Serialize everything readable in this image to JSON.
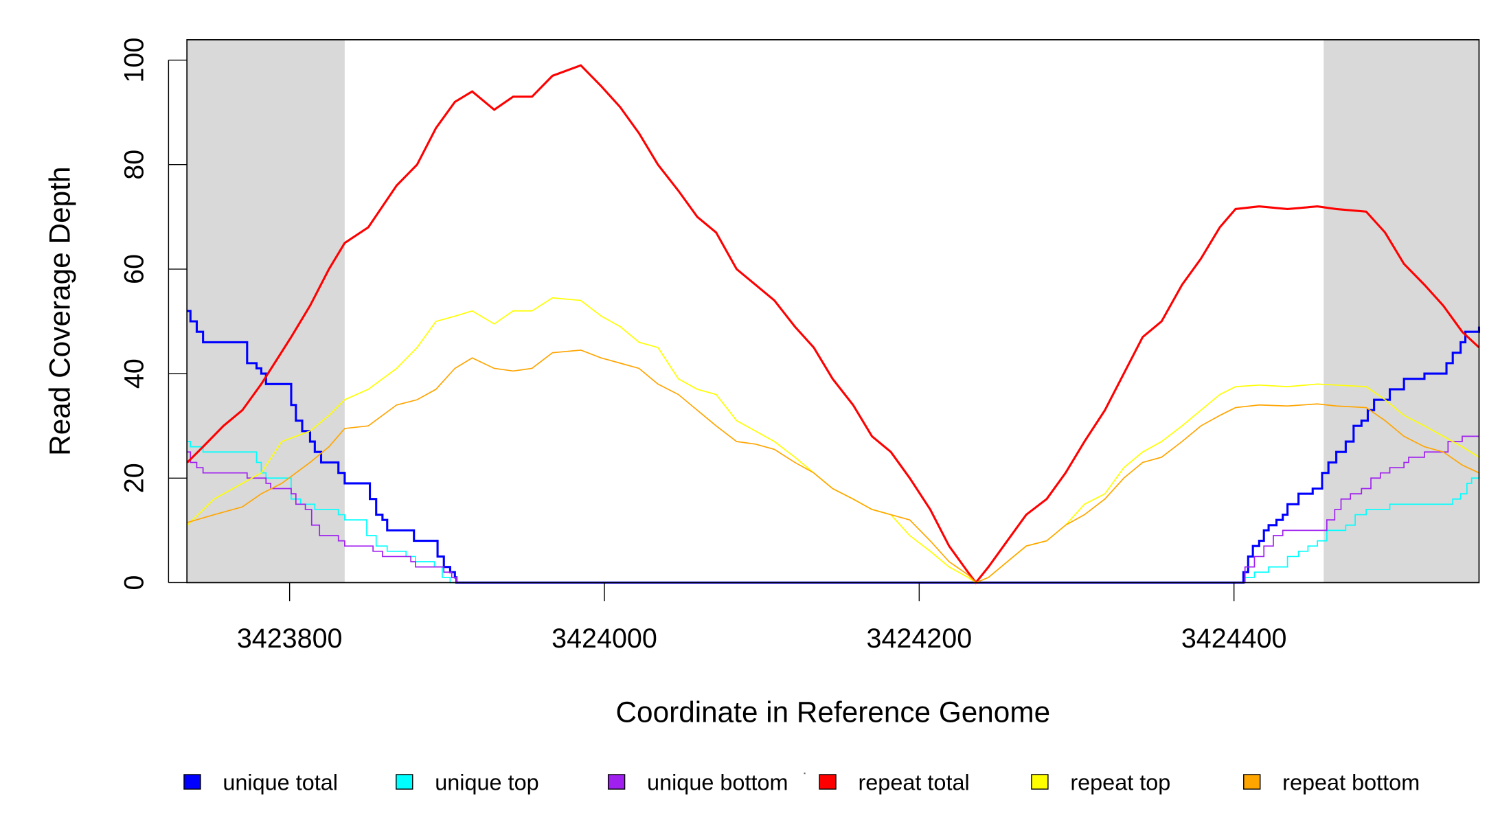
{
  "chart_data": {
    "type": "line",
    "title": "",
    "xlabel": "Coordinate in Reference Genome",
    "ylabel": "Read Coverage Depth",
    "xlim": [
      3423735,
      3424556
    ],
    "ylim": [
      0,
      100
    ],
    "grid": false,
    "x_ticks": [
      3423800,
      3424000,
      3424200,
      3424400
    ],
    "x_tick_labels": [
      "3423800",
      "3424000",
      "3424200",
      "3424400"
    ],
    "y_ticks": [
      0,
      20,
      40,
      60,
      80,
      100
    ],
    "y_tick_labels": [
      "0",
      "20",
      "40",
      "60",
      "80",
      "100"
    ],
    "shaded_regions": [
      [
        3423735,
        3423835
      ],
      [
        3424457,
        3424556
      ]
    ],
    "shade_color": "#d9d9d9",
    "legend_placement": "bottom",
    "series": [
      {
        "name": "unique total",
        "color": "#0000ff",
        "style": "step",
        "width": 2.2,
        "x": [
          3423735,
          3423737,
          3423741,
          3423745,
          3423770,
          3423773,
          3423779,
          3423782,
          3423785,
          3423798,
          3423801,
          3423804,
          3423808,
          3423813,
          3423816,
          3423820,
          3423828,
          3423831,
          3423835,
          3423847,
          3423851,
          3423855,
          3423859,
          3423862,
          3423874,
          3423879,
          3423892,
          3423894,
          3423898,
          3423902,
          3423905,
          3423906,
          3424404,
          3424406,
          3424409,
          3424412,
          3424416,
          3424419,
          3424422,
          3424427,
          3424431,
          3424434,
          3424441,
          3424450,
          3424456,
          3424460,
          3424465,
          3424471,
          3424476,
          3424481,
          3424485,
          3424489,
          3424499,
          3424508,
          3424521,
          3424535,
          3424539,
          3424544,
          3424547,
          3424556
        ],
        "y": [
          52,
          50,
          48,
          46,
          46,
          42,
          41,
          40,
          38,
          38,
          34,
          31,
          29,
          27,
          25,
          23,
          23,
          21,
          19,
          19,
          16,
          13,
          12,
          10,
          10,
          8,
          8,
          5,
          3,
          2,
          1,
          0,
          0,
          2,
          5,
          7,
          8,
          10,
          11,
          12,
          13,
          15,
          17,
          18,
          21,
          23,
          25,
          27,
          30,
          31,
          33,
          35,
          37,
          39,
          40,
          42,
          44,
          46,
          48,
          49
        ]
      },
      {
        "name": "unique top",
        "color": "#00ffff",
        "style": "step",
        "width": 1.2,
        "x": [
          3423735,
          3423737,
          3423745,
          3423773,
          3423779,
          3423782,
          3423785,
          3423798,
          3423801,
          3423807,
          3423816,
          3423831,
          3423835,
          3423847,
          3423849,
          3423855,
          3423862,
          3423874,
          3423880,
          3423892,
          3423897,
          3423902,
          3424404,
          3424407,
          3424413,
          3424422,
          3424434,
          3424441,
          3424447,
          3424453,
          3424459,
          3424471,
          3424477,
          3424484,
          3424499,
          3424533,
          3424539,
          3424544,
          3424548,
          3424551,
          3424556
        ],
        "y": [
          27,
          26,
          25,
          25,
          23,
          21,
          20,
          20,
          16,
          15,
          14,
          13,
          12,
          12,
          9,
          7,
          6,
          5,
          4,
          3,
          1,
          0,
          0,
          1,
          2,
          3,
          5,
          6,
          7,
          8,
          10,
          11,
          13,
          14,
          15,
          15,
          16,
          17,
          19,
          20,
          21
        ]
      },
      {
        "name": "unique bottom",
        "color": "#a020f0",
        "style": "step",
        "width": 1.2,
        "x": [
          3423735,
          3423737,
          3423741,
          3423745,
          3423770,
          3423773,
          3423785,
          3423788,
          3423798,
          3423801,
          3423804,
          3423810,
          3423814,
          3423819,
          3423831,
          3423835,
          3423850,
          3423853,
          3423859,
          3423877,
          3423880,
          3423892,
          3423898,
          3423903,
          3423906,
          3424404,
          3424407,
          3424413,
          3424419,
          3424425,
          3424431,
          3424456,
          3424459,
          3424464,
          3424468,
          3424474,
          3424481,
          3424487,
          3424493,
          3424499,
          3424508,
          3424511,
          3424521,
          3424533,
          3424536,
          3424545,
          3424556
        ],
        "y": [
          25,
          23,
          22,
          21,
          21,
          20,
          19,
          18,
          18,
          17,
          15,
          14,
          11,
          9,
          8,
          7,
          7,
          6,
          5,
          4,
          3,
          3,
          2,
          1,
          0,
          0,
          3,
          5,
          7,
          9,
          10,
          10,
          12,
          14,
          16,
          17,
          18,
          20,
          21,
          22,
          23,
          24,
          25,
          25,
          27,
          28,
          28
        ]
      },
      {
        "name": "repeat total",
        "color": "#ff0000",
        "style": "line",
        "width": 2.2,
        "x": [
          3423735,
          3423745,
          3423758,
          3423770,
          3423782,
          3423801,
          3423813,
          3423825,
          3423835,
          3423850,
          3423868,
          3423881,
          3423893,
          3423905,
          3423916,
          3423930,
          3423942,
          3423954,
          3423967,
          3423985,
          3423998,
          3424010,
          3424022,
          3424034,
          3424047,
          3424059,
          3424071,
          3424084,
          3424096,
          3424108,
          3424121,
          3424133,
          3424145,
          3424158,
          3424170,
          3424182,
          3424194,
          3424207,
          3424219,
          3424231,
          3424236,
          3424244,
          3424256,
          3424268,
          3424281,
          3424293,
          3424305,
          3424318,
          3424330,
          3424342,
          3424354,
          3424367,
          3424379,
          3424391,
          3424401,
          3424416,
          3424434,
          3424453,
          3424465,
          3424484,
          3424496,
          3424508,
          3424521,
          3424533,
          3424545,
          3424556
        ],
        "y": [
          23,
          26,
          30,
          33,
          38,
          47,
          53,
          60,
          65,
          68,
          76,
          80,
          87,
          92,
          94,
          90.5,
          93,
          93,
          97,
          99,
          95,
          91,
          86,
          80,
          75,
          70,
          67,
          60,
          57,
          54,
          49,
          45,
          39,
          34,
          28,
          25,
          20,
          14,
          7,
          2,
          0,
          3,
          8,
          13,
          16,
          21,
          27,
          33,
          40,
          47,
          50,
          57,
          62,
          68,
          71.5,
          72,
          71.5,
          72,
          71.5,
          71,
          67,
          61,
          57,
          53,
          48,
          45
        ]
      },
      {
        "name": "repeat top",
        "color": "#ffff00",
        "style": "line",
        "width": 1.2,
        "x": [
          3423735,
          3423752,
          3423770,
          3423782,
          3423795,
          3423813,
          3423825,
          3423835,
          3423850,
          3423868,
          3423881,
          3423893,
          3423905,
          3423916,
          3423930,
          3423942,
          3423954,
          3423967,
          3423985,
          3423998,
          3424010,
          3424022,
          3424034,
          3424047,
          3424059,
          3424071,
          3424084,
          3424096,
          3424108,
          3424121,
          3424133,
          3424145,
          3424158,
          3424170,
          3424182,
          3424194,
          3424207,
          3424219,
          3424231,
          3424236,
          3424244,
          3424256,
          3424268,
          3424281,
          3424293,
          3424305,
          3424318,
          3424330,
          3424342,
          3424354,
          3424367,
          3424379,
          3424391,
          3424401,
          3424416,
          3424434,
          3424453,
          3424465,
          3424484,
          3424496,
          3424508,
          3424521,
          3424533,
          3424545,
          3424556
        ],
        "y": [
          11,
          16,
          19,
          21,
          27,
          29,
          32,
          35,
          37,
          41,
          45,
          50,
          51,
          52,
          49.5,
          52,
          52,
          54.5,
          54,
          51,
          49,
          46,
          45,
          39,
          37,
          36,
          31,
          29,
          27,
          24,
          21,
          18,
          16,
          14,
          13,
          9,
          6,
          3,
          1,
          0,
          1,
          4,
          7,
          8,
          11,
          15,
          17,
          22,
          25,
          27,
          30,
          33,
          36,
          37.5,
          37.8,
          37.5,
          38,
          37.8,
          37.5,
          35,
          32,
          30,
          28,
          26,
          24
        ]
      },
      {
        "name": "repeat bottom",
        "color": "#ffa500",
        "style": "line",
        "width": 1.2,
        "x": [
          3423735,
          3423752,
          3423770,
          3423782,
          3423795,
          3423813,
          3423825,
          3423835,
          3423850,
          3423868,
          3423881,
          3423893,
          3423905,
          3423916,
          3423930,
          3423942,
          3423954,
          3423967,
          3423985,
          3423998,
          3424010,
          3424022,
          3424034,
          3424047,
          3424059,
          3424071,
          3424084,
          3424096,
          3424108,
          3424121,
          3424133,
          3424145,
          3424158,
          3424170,
          3424182,
          3424194,
          3424207,
          3424219,
          3424231,
          3424236,
          3424244,
          3424256,
          3424268,
          3424281,
          3424293,
          3424305,
          3424318,
          3424330,
          3424342,
          3424354,
          3424367,
          3424379,
          3424391,
          3424401,
          3424416,
          3424434,
          3424453,
          3424465,
          3424484,
          3424496,
          3424508,
          3424521,
          3424533,
          3424545,
          3424556
        ],
        "y": [
          11.5,
          13,
          14.5,
          17,
          19,
          23,
          26,
          29.5,
          30,
          34,
          35,
          37,
          41,
          43,
          41,
          40.5,
          41,
          44,
          44.5,
          43,
          42,
          41,
          38,
          36,
          33,
          30,
          27,
          26.5,
          25.5,
          23,
          21,
          18,
          16,
          14,
          13,
          12,
          8,
          4,
          1.5,
          0,
          1,
          4,
          7,
          8,
          11,
          13,
          16,
          20,
          23,
          24,
          27,
          30,
          32,
          33.5,
          34,
          33.8,
          34.2,
          33.8,
          33.5,
          31,
          28,
          26,
          25,
          22.5,
          21
        ]
      }
    ]
  }
}
